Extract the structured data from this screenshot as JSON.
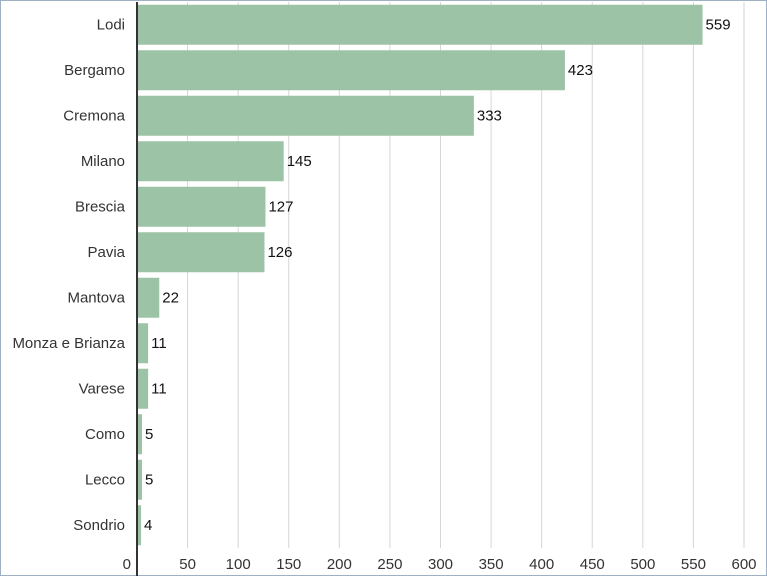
{
  "chart_data": {
    "type": "bar",
    "orientation": "horizontal",
    "categories": [
      "Lodi",
      "Bergamo",
      "Cremona",
      "Milano",
      "Brescia",
      "Pavia",
      "Mantova",
      "Monza e Brianza",
      "Varese",
      "Como",
      "Lecco",
      "Sondrio"
    ],
    "values": [
      559,
      423,
      333,
      145,
      127,
      126,
      22,
      11,
      11,
      5,
      5,
      4
    ],
    "color": "#9dc3a6",
    "xlim": [
      0,
      600
    ],
    "xticks": [
      0,
      50,
      100,
      150,
      200,
      250,
      300,
      350,
      400,
      450,
      500,
      550,
      600
    ],
    "grid": true
  }
}
